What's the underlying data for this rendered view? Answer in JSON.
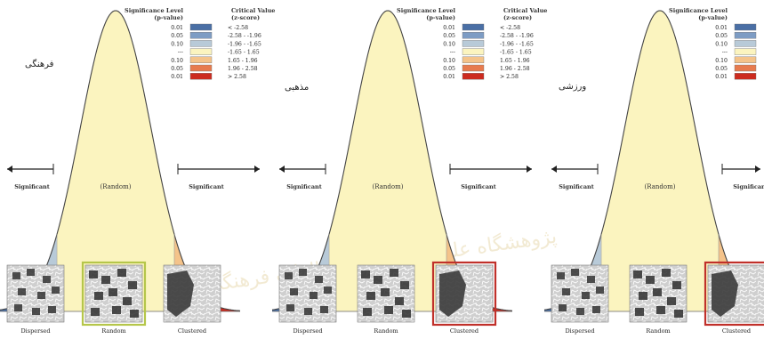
{
  "watermark_text": "پژوهشگاه علوم انسانی و مطالعات فرهنگی",
  "labels": {
    "significance_header": [
      "Significance Level",
      "(p-value)"
    ],
    "critical_header": [
      "Critical Value",
      "(z-score)"
    ],
    "significant": "Significant",
    "random_center": "(Random)",
    "dispersed": "Dispersed",
    "random": "Random",
    "clustered": "Clustered"
  },
  "legend_rows": [
    {
      "p": "0.01",
      "z": "< -2.58",
      "color": "#4a6fa5"
    },
    {
      "p": "0.05",
      "z": "-2.58 - -1.96",
      "color": "#7d9cc4"
    },
    {
      "p": "0.10",
      "z": "-1.96 - -1.65",
      "color": "#b8cad8"
    },
    {
      "p": "---",
      "z": "-1.65 - 1.65",
      "color": "#fbf4bf"
    },
    {
      "p": "0.10",
      "z": "1.65 - 1.96",
      "color": "#f4c38a"
    },
    {
      "p": "0.05",
      "z": "1.96 - 2.58",
      "color": "#e77b4e"
    },
    {
      "p": "0.01",
      "z": "> 2.58",
      "color": "#cc2b1f"
    }
  ],
  "panels": [
    {
      "title": "فرهنگی",
      "result": "random",
      "highlight": "#b5c64a"
    },
    {
      "title": "مذهبی",
      "result": "clustered",
      "highlight": "#c0302a"
    },
    {
      "title": "ورزشی",
      "result": "clustered",
      "highlight": "#c0302a"
    }
  ]
}
